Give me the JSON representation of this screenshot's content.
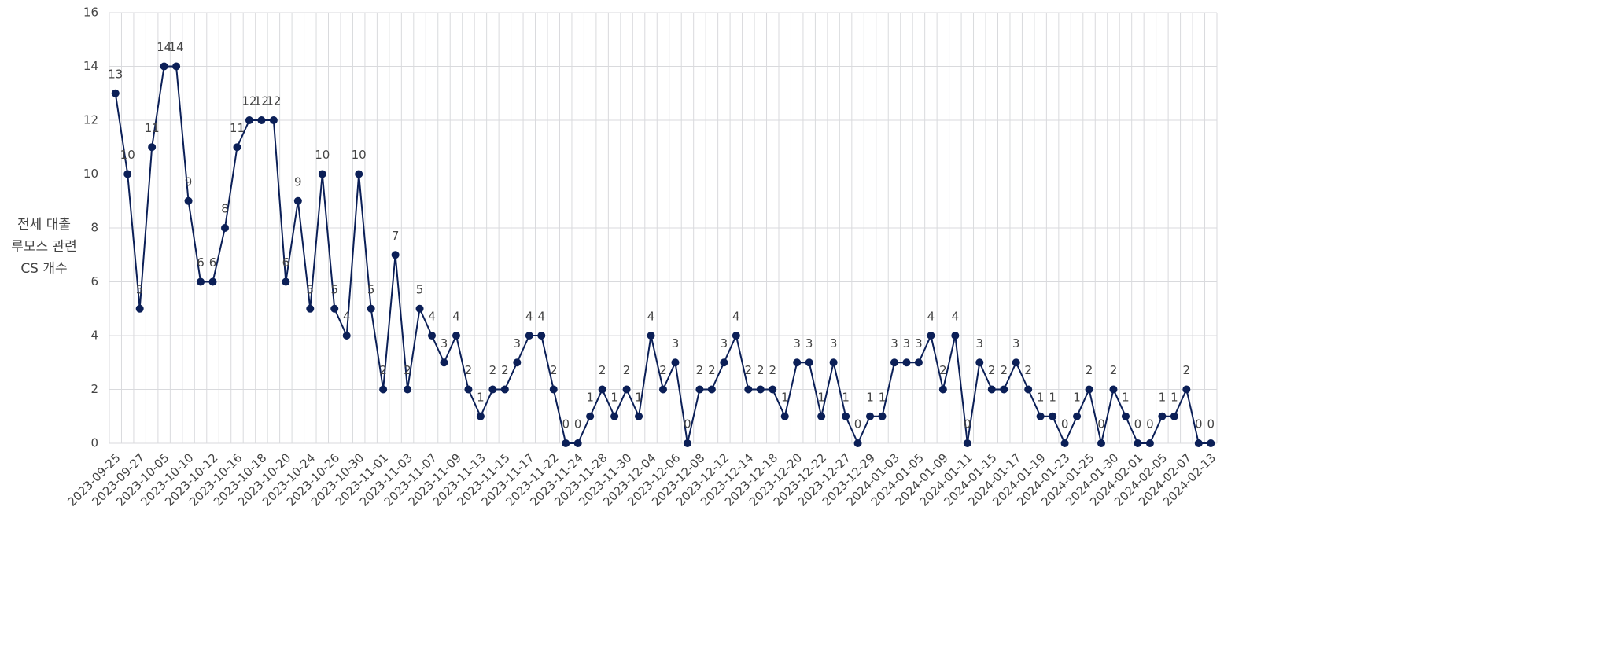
{
  "chart_data": {
    "type": "line",
    "ylabel": [
      "전세 대출",
      "루모스 관련",
      "CS 개수"
    ],
    "categories": [
      "2023-09-25",
      null,
      "2023-09-27",
      null,
      "2023-10-05",
      null,
      "2023-10-10",
      null,
      "2023-10-12",
      null,
      "2023-10-16",
      null,
      "2023-10-18",
      null,
      "2023-10-20",
      null,
      "2023-10-24",
      null,
      "2023-10-26",
      null,
      "2023-10-30",
      null,
      "2023-11-01",
      null,
      "2023-11-03",
      null,
      "2023-11-07",
      null,
      "2023-11-09",
      null,
      "2023-11-13",
      null,
      "2023-11-15",
      null,
      "2023-11-17",
      null,
      "2023-11-22",
      null,
      "2023-11-24",
      null,
      "2023-11-28",
      null,
      "2023-11-30",
      null,
      "2023-12-04",
      null,
      "2023-12-06",
      null,
      "2023-12-08",
      null,
      "2023-12-12",
      null,
      "2023-12-14",
      null,
      "2023-12-18",
      null,
      "2023-12-20",
      null,
      "2023-12-22",
      null,
      "2023-12-27",
      null,
      "2023-12-29",
      null,
      "2024-01-03",
      null,
      "2024-01-05",
      null,
      "2024-01-09",
      null,
      "2024-01-11",
      null,
      "2024-01-15",
      null,
      "2024-01-17",
      null,
      "2024-01-19",
      null,
      "2024-01-23",
      null,
      "2024-01-25",
      null,
      "2024-01-30",
      null,
      "2024-02-01",
      null,
      "2024-02-05",
      null,
      "2024-02-07",
      null,
      "2024-02-13"
    ],
    "values": [
      13,
      10,
      5,
      11,
      14,
      14,
      9,
      6,
      6,
      8,
      11,
      12,
      12,
      12,
      6,
      9,
      5,
      10,
      5,
      4,
      10,
      5,
      2,
      7,
      2,
      5,
      4,
      3,
      4,
      2,
      1,
      2,
      2,
      3,
      4,
      4,
      2,
      0,
      0,
      1,
      2,
      1,
      2,
      1,
      4,
      2,
      3,
      0,
      2,
      2,
      3,
      4,
      2,
      2,
      2,
      1,
      3,
      3,
      1,
      3,
      1,
      0,
      1,
      1,
      3,
      3,
      3,
      4,
      2,
      4,
      0,
      3,
      2,
      2,
      3,
      2,
      1,
      1,
      0,
      1,
      2,
      0,
      2,
      1,
      0,
      0,
      1,
      1,
      2,
      0,
      0
    ],
    "color": "#0b1f57",
    "ylim": [
      0,
      16
    ],
    "yticks": [
      0,
      2,
      4,
      6,
      8,
      10,
      12,
      14,
      16
    ],
    "grid": true
  }
}
